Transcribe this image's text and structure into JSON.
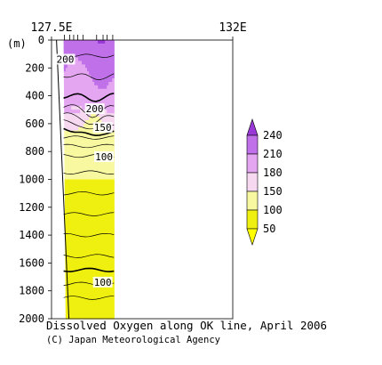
{
  "chart_data": {
    "type": "contour-section",
    "title": "Dissolved Oxygen along OK line, April 2006",
    "credit": "(C) Japan Meteorological Agency",
    "x_axis": {
      "range": [
        127.5,
        132.0
      ],
      "tick_labels": [
        {
          "value": 127.5,
          "label": "127.5E"
        },
        {
          "value": 132.0,
          "label": "132E"
        }
      ],
      "station_longitudes": [
        127.82,
        127.95,
        128.05,
        128.15,
        128.28,
        128.62,
        128.78,
        128.88,
        129.02
      ]
    },
    "y_axis": {
      "label": "(m)",
      "range": [
        0,
        2000
      ],
      "inverted": true,
      "ticks": [
        0,
        200,
        400,
        600,
        800,
        1000,
        1200,
        1400,
        1600,
        1800,
        2000
      ]
    },
    "data_extent": {
      "lon_min": 127.8,
      "lon_max": 129.05
    },
    "contour_labels": [
      {
        "text": "200",
        "lon": 127.82,
        "depth": 150
      },
      {
        "text": "200",
        "lon": 128.55,
        "depth": 505
      },
      {
        "text": "150",
        "lon": 128.75,
        "depth": 640
      },
      {
        "text": "100",
        "lon": 128.78,
        "depth": 850
      },
      {
        "text": "100",
        "lon": 128.75,
        "depth": 1750
      }
    ],
    "colorbar": {
      "levels": [
        50,
        100,
        150,
        180,
        210,
        240
      ],
      "bands": [
        {
          "from": 50,
          "to": 100,
          "color": "#f0f010"
        },
        {
          "from": 100,
          "to": 150,
          "color": "#f8f8a0"
        },
        {
          "from": 150,
          "to": 180,
          "color": "#f6d8f0"
        },
        {
          "from": 180,
          "to": 210,
          "color": "#e4a6f0"
        },
        {
          "from": 210,
          "to": 240,
          "color": "#c070e8"
        }
      ],
      "under_color": "#ffff00",
      "over_color": "#9a38d8"
    }
  }
}
